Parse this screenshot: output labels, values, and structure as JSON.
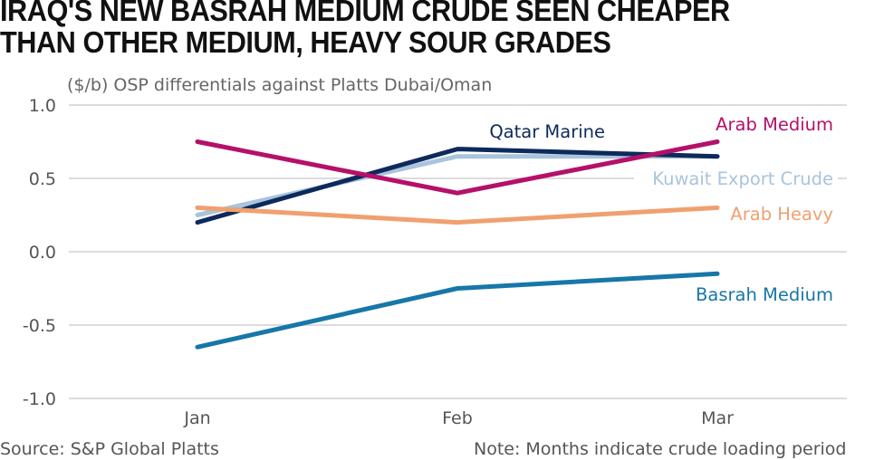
{
  "header": {
    "title_line1": "IRAQ'S NEW BASRAH MEDIUM CRUDE SEEN CHEAPER",
    "title_line2": "THAN OTHER MEDIUM, HEAVY SOUR GRADES",
    "subtitle": "($/b) OSP differentials against Platts Dubai/Oman"
  },
  "footer": {
    "source": "Source: S&P Global Platts",
    "note": "Note: Months indicate crude loading period"
  },
  "chart_data": {
    "type": "line",
    "title": "IRAQ'S NEW BASRAH MEDIUM CRUDE SEEN CHEAPER THAN OTHER MEDIUM, HEAVY SOUR GRADES",
    "subtitle": "($/b) OSP differentials against Platts Dubai/Oman",
    "xlabel": "",
    "ylabel": "($/b) OSP differentials against Platts Dubai/Oman",
    "categories": [
      "Jan",
      "Feb",
      "Mar"
    ],
    "ylim": [
      -1.0,
      1.0
    ],
    "yticks": [
      1.0,
      0.5,
      0.0,
      -0.5,
      -1.0
    ],
    "ytick_labels": [
      "1.0",
      "0.5",
      "0.0",
      "-0.5",
      "-1.0"
    ],
    "grid": true,
    "legend": "direct-labels-right",
    "series": [
      {
        "name": "Kuwait Export Crude",
        "color": "#a9c4dc",
        "values": [
          0.25,
          0.65,
          0.65
        ]
      },
      {
        "name": "Qatar Marine",
        "color": "#0d2a5c",
        "values": [
          0.2,
          0.7,
          0.65
        ]
      },
      {
        "name": "Arab Medium",
        "color": "#b5106a",
        "values": [
          0.75,
          0.4,
          0.75
        ]
      },
      {
        "name": "Arab Heavy",
        "color": "#f0a070",
        "values": [
          0.3,
          0.2,
          0.3
        ]
      },
      {
        "name": "Basrah Medium",
        "color": "#1777a8",
        "values": [
          -0.65,
          -0.25,
          -0.15
        ]
      }
    ]
  }
}
